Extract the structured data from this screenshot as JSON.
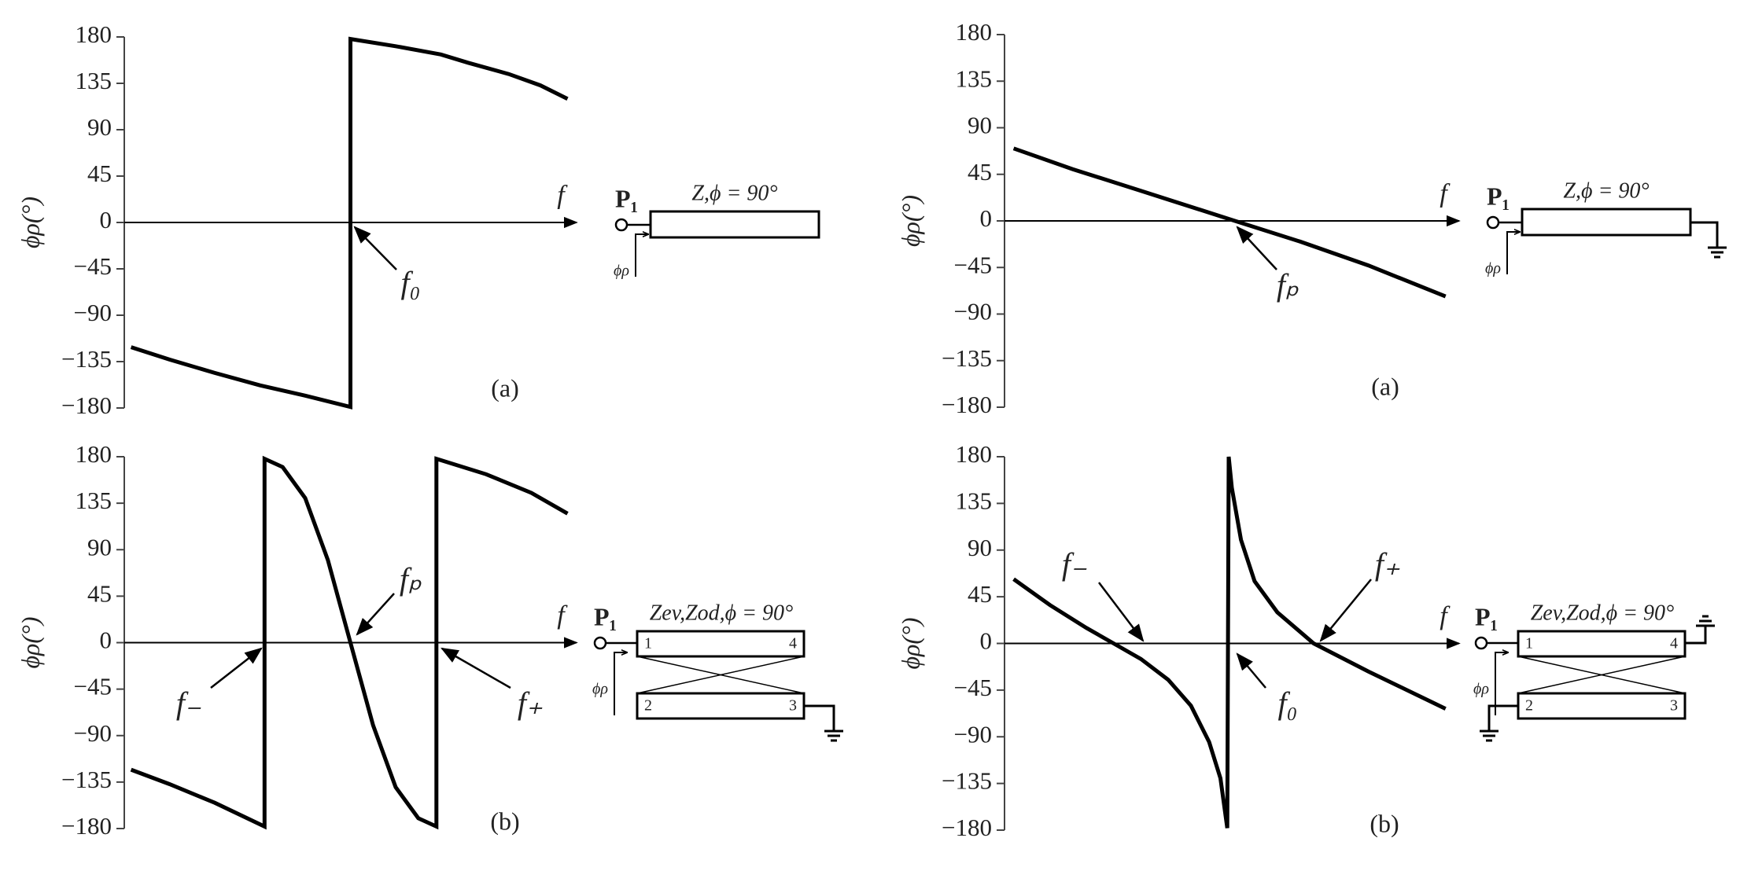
{
  "chart_data": [
    {
      "type": "line",
      "xlabel": "f",
      "ylabel": "ϕρ(°)",
      "panel": "(a)",
      "x": [
        1.5,
        10,
        20,
        30,
        40,
        50,
        50,
        60,
        70,
        76,
        85,
        92,
        98
      ],
      "series": [
        {
          "color": "#000000",
          "values": [
            -121,
            -133,
            -146,
            -158,
            -168,
            -179,
            178,
            171,
            163,
            155,
            144,
            133,
            120
          ]
        }
      ],
      "xlim": [
        0,
        100
      ],
      "ylim": [
        -180,
        180
      ],
      "yticks": [
        180,
        135,
        90,
        45,
        0,
        {
          "value": -45,
          "label": "−45"
        },
        {
          "value": -90,
          "label": "−90"
        },
        {
          "value": -135,
          "label": "−135"
        },
        {
          "value": -180,
          "label": "−180"
        }
      ],
      "annotations": [
        "f₀"
      ],
      "schematic": {
        "port": "P₁",
        "line": "Z,ϕ = 90°",
        "phase": "ϕρ"
      }
    },
    {
      "type": "line",
      "xlabel": "f",
      "ylabel": "ϕρ(°)",
      "panel": "(a)",
      "x": [
        2,
        15,
        30,
        50,
        65,
        80,
        97
      ],
      "series": [
        {
          "color": "#000000",
          "values": [
            70,
            50,
            29,
            1,
            -20,
            -43,
            -73
          ]
        }
      ],
      "xlim": [
        0,
        100
      ],
      "ylim": [
        -180,
        180
      ],
      "yticks": [
        180,
        135,
        90,
        45,
        0,
        {
          "value": -45,
          "label": "−45"
        },
        {
          "value": -90,
          "label": "−90"
        },
        {
          "value": -135,
          "label": "−135"
        },
        {
          "value": -180,
          "label": "−180"
        }
      ],
      "annotations": [
        "fₚ"
      ],
      "schematic": {
        "port": "P₁",
        "line": "Z,ϕ = 90°",
        "phase": "ϕρ"
      }
    },
    {
      "type": "line",
      "xlabel": "f",
      "ylabel": "ϕρ(°)",
      "panel": "(b)",
      "x": [
        1.5,
        10,
        20,
        31,
        31,
        35,
        40,
        45,
        50,
        55,
        60,
        65,
        69,
        69,
        80,
        90,
        98
      ],
      "series": [
        {
          "color": "#000000",
          "values": [
            -123,
            -137,
            -155,
            -178,
            178,
            170,
            140,
            80,
            0,
            -80,
            -140,
            -170,
            -178,
            178,
            163,
            145,
            125
          ]
        }
      ],
      "xlim": [
        0,
        100
      ],
      "ylim": [
        -180,
        180
      ],
      "yticks": [
        180,
        135,
        90,
        45,
        0,
        {
          "value": -45,
          "label": "−45"
        },
        {
          "value": -90,
          "label": "−90"
        },
        {
          "value": -135,
          "label": "−135"
        },
        {
          "value": -180,
          "label": "−180"
        }
      ],
      "annotations": [
        "f₋",
        "fₚ",
        "f₊"
      ],
      "schematic": {
        "port": "P₁",
        "line": "Zev,Zod,ϕ = 90°",
        "phase": "ϕρ",
        "ports": [
          "1",
          "4",
          "2",
          "3"
        ]
      }
    },
    {
      "type": "line",
      "xlabel": "f",
      "ylabel": "ϕρ(°)",
      "panel": "(b)",
      "x": [
        2,
        10,
        18,
        24,
        30,
        36,
        41,
        45,
        47.5,
        49,
        49.3,
        50,
        52,
        55,
        60,
        68,
        80,
        97
      ],
      "series": [
        {
          "color": "#000000",
          "values": [
            62,
            37,
            15,
            0,
            -15,
            -35,
            -60,
            -95,
            -130,
            -178,
            180,
            150,
            100,
            60,
            30,
            0,
            -27,
            -63
          ]
        }
      ],
      "xlim": [
        0,
        100
      ],
      "ylim": [
        -180,
        180
      ],
      "yticks": [
        180,
        135,
        90,
        45,
        0,
        {
          "value": -45,
          "label": "−45"
        },
        {
          "value": -90,
          "label": "−90"
        },
        {
          "value": -135,
          "label": "−135"
        },
        {
          "value": -180,
          "label": "−180"
        }
      ],
      "annotations": [
        "f₋",
        "f₀",
        "f₊"
      ],
      "schematic": {
        "port": "P₁",
        "line": "Zev,Zod,ϕ = 90°",
        "phase": "ϕρ",
        "ports": [
          "1",
          "4",
          "2",
          "3"
        ]
      }
    }
  ]
}
